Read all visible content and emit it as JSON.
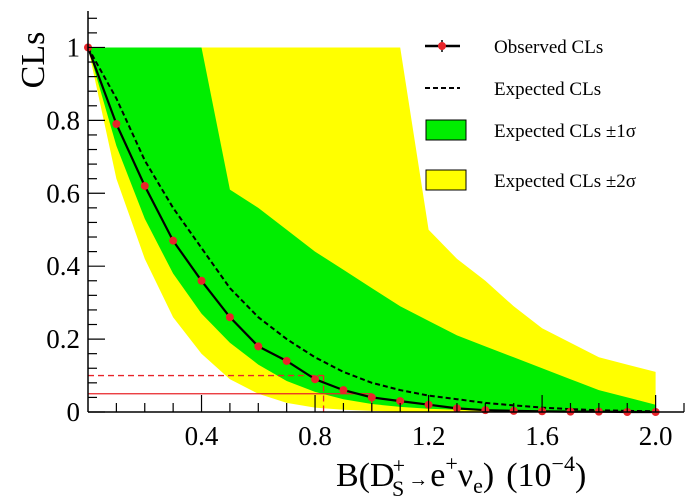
{
  "chart_data": {
    "type": "line",
    "ylabel": "CLs",
    "xlabel_parts": {
      "b": "B(D",
      "s_sup": "+",
      "s_sub": "S",
      "arrow": "→",
      "e": "e",
      "e_sup": "+",
      "nu": "ν",
      "nu_sub": "e",
      "close": ")",
      "unit_open": "(10",
      "unit_sup": "−4",
      "unit_close": ")"
    },
    "xlim": [
      0.0,
      2.1
    ],
    "ylim": [
      0.0,
      1.1
    ],
    "x_ticks": [
      0.4,
      0.8,
      1.2,
      1.6,
      2.0
    ],
    "x_tick_labels": [
      "0.4",
      "0.8",
      "1.2",
      "1.6",
      "2.0"
    ],
    "y_ticks": [
      0.0,
      0.2,
      0.4,
      0.6,
      0.8,
      1.0
    ],
    "y_tick_labels": [
      "0",
      "0.2",
      "0.4",
      "0.6",
      "0.8",
      "1"
    ],
    "grid": false,
    "legend_position": "top-right",
    "legend": [
      {
        "label": "Observed CLs",
        "style": "line-marker"
      },
      {
        "label": "Expected CLs",
        "style": "dashed"
      },
      {
        "label": "Expected CLs ±1σ",
        "style": "box"
      },
      {
        "label": "Expected CLs ±2σ",
        "style": "box"
      }
    ],
    "observed": {
      "x": [
        0.0,
        0.1,
        0.2,
        0.3,
        0.4,
        0.5,
        0.6,
        0.7,
        0.8,
        0.9,
        1.0,
        1.1,
        1.2,
        1.3,
        1.4,
        1.5,
        1.6,
        1.7,
        1.8,
        1.9,
        2.0
      ],
      "y": [
        1.0,
        0.79,
        0.62,
        0.47,
        0.36,
        0.26,
        0.18,
        0.14,
        0.09,
        0.06,
        0.04,
        0.03,
        0.02,
        0.01,
        0.005,
        0.003,
        0.002,
        0.001,
        0.001,
        0.0,
        0.0
      ]
    },
    "expected": {
      "x": [
        0.0,
        0.1,
        0.2,
        0.3,
        0.4,
        0.5,
        0.6,
        0.7,
        0.8,
        0.9,
        1.0,
        1.1,
        1.2,
        1.3,
        1.4,
        1.5,
        1.6,
        1.7,
        1.8,
        1.9,
        2.0
      ],
      "y": [
        1.0,
        0.86,
        0.69,
        0.56,
        0.45,
        0.34,
        0.26,
        0.2,
        0.15,
        0.11,
        0.08,
        0.06,
        0.045,
        0.035,
        0.025,
        0.018,
        0.012,
        0.008,
        0.005,
        0.003,
        0.002
      ]
    },
    "band_1sigma": {
      "x": [
        0.0,
        0.1,
        0.2,
        0.3,
        0.4,
        0.5,
        0.6,
        0.7,
        0.8,
        0.9,
        1.0,
        1.1,
        1.2,
        1.3,
        1.4,
        1.5,
        1.6,
        1.7,
        1.8,
        1.9,
        2.0
      ],
      "lower": [
        1.0,
        0.73,
        0.53,
        0.38,
        0.27,
        0.19,
        0.13,
        0.085,
        0.055,
        0.035,
        0.022,
        0.014,
        0.009,
        0.006,
        0.004,
        0.003,
        0.002,
        0.001,
        0.001,
        0.0,
        0.0
      ],
      "upper": [
        1.0,
        1.0,
        1.0,
        1.0,
        1.0,
        0.61,
        0.56,
        0.5,
        0.44,
        0.39,
        0.34,
        0.29,
        0.25,
        0.21,
        0.18,
        0.15,
        0.12,
        0.09,
        0.06,
        0.04,
        0.02
      ]
    },
    "band_2sigma": {
      "x": [
        0.0,
        0.1,
        0.2,
        0.3,
        0.4,
        0.5,
        0.6,
        0.7,
        0.8,
        0.9,
        1.0,
        1.1,
        1.2,
        1.3,
        1.4,
        1.5,
        1.6,
        1.7,
        1.8,
        1.9,
        2.0
      ],
      "lower": [
        1.0,
        0.64,
        0.42,
        0.26,
        0.16,
        0.09,
        0.05,
        0.025,
        0.012,
        0.006,
        0.003,
        0.001,
        0.0,
        0.0,
        0.0,
        0.0,
        0.0,
        0.0,
        0.0,
        0.0,
        0.0
      ],
      "upper": [
        1.0,
        1.0,
        1.0,
        1.0,
        1.0,
        1.0,
        1.0,
        1.0,
        1.0,
        1.0,
        1.0,
        1.0,
        0.5,
        0.42,
        0.36,
        0.29,
        0.23,
        0.19,
        0.15,
        0.13,
        0.11
      ]
    },
    "limit_lines": [
      {
        "cl": 0.1,
        "x": 0.83,
        "style": "dashed"
      },
      {
        "cl": 0.05,
        "x": 1.0,
        "style": "solid"
      }
    ],
    "colors": {
      "observed": "#000000",
      "marker": "#e8242a",
      "expected": "#000000",
      "band_1sigma": "#00ee00",
      "band_2sigma": "#ffff00",
      "limit": "#e8242a",
      "axis": "#000000"
    }
  }
}
